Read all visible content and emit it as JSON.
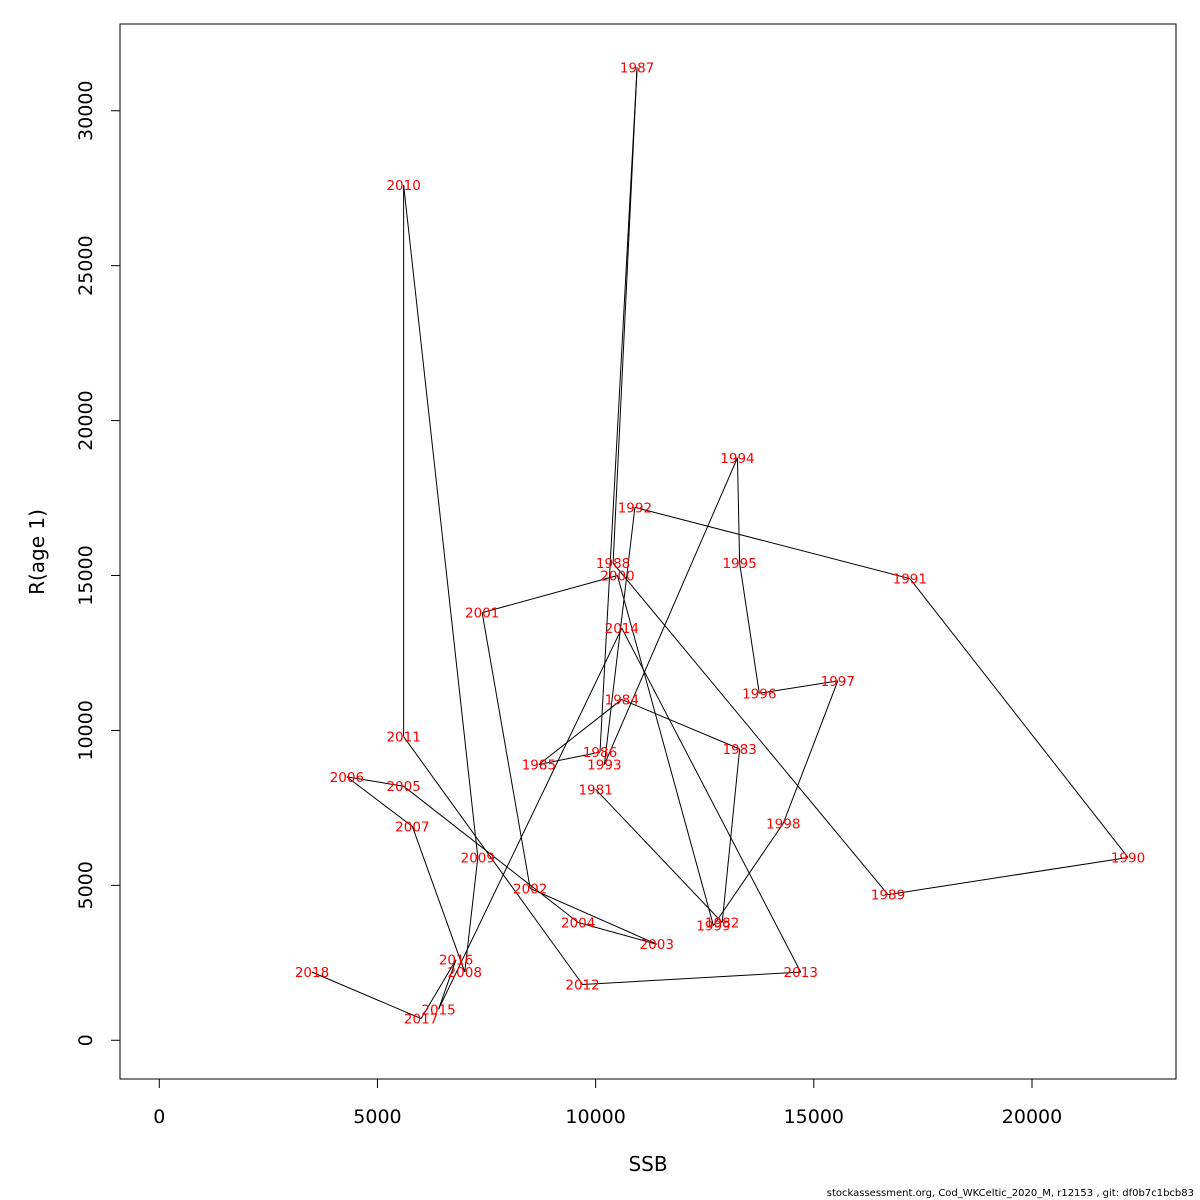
{
  "chart_data": {
    "type": "line",
    "xlabel": "SSB",
    "ylabel": "R(age 1)",
    "xlim": [
      -900,
      23300
    ],
    "ylim": [
      -1250,
      32800
    ],
    "x_ticks": [
      0,
      5000,
      10000,
      15000,
      20000
    ],
    "y_ticks": [
      0,
      5000,
      10000,
      15000,
      20000,
      25000,
      30000
    ],
    "grid": false,
    "point_color": "#ff0000",
    "line_color": "#000000",
    "points": [
      {
        "label": "1981",
        "x": 10000,
        "y": 8100
      },
      {
        "label": "1982",
        "x": 12900,
        "y": 3800
      },
      {
        "label": "1983",
        "x": 13300,
        "y": 9400
      },
      {
        "label": "1984",
        "x": 10600,
        "y": 11000
      },
      {
        "label": "1985",
        "x": 8700,
        "y": 8900
      },
      {
        "label": "1986",
        "x": 10100,
        "y": 9300
      },
      {
        "label": "1987",
        "x": 10950,
        "y": 31400
      },
      {
        "label": "1988",
        "x": 10400,
        "y": 15400
      },
      {
        "label": "1989",
        "x": 16700,
        "y": 4700
      },
      {
        "label": "1990",
        "x": 22200,
        "y": 5900
      },
      {
        "label": "1991",
        "x": 17200,
        "y": 14900
      },
      {
        "label": "1992",
        "x": 10900,
        "y": 17200
      },
      {
        "label": "1993",
        "x": 10200,
        "y": 8900
      },
      {
        "label": "1994",
        "x": 13250,
        "y": 18800
      },
      {
        "label": "1995",
        "x": 13300,
        "y": 15400
      },
      {
        "label": "1996",
        "x": 13750,
        "y": 11200
      },
      {
        "label": "1997",
        "x": 15550,
        "y": 11600
      },
      {
        "label": "1998",
        "x": 14300,
        "y": 7000
      },
      {
        "label": "1999",
        "x": 12700,
        "y": 3700
      },
      {
        "label": "2000",
        "x": 10500,
        "y": 15000
      },
      {
        "label": "2001",
        "x": 7400,
        "y": 13800
      },
      {
        "label": "2002",
        "x": 8500,
        "y": 4900
      },
      {
        "label": "2003",
        "x": 11400,
        "y": 3100
      },
      {
        "label": "2004",
        "x": 9600,
        "y": 3800
      },
      {
        "label": "2005",
        "x": 5600,
        "y": 8200
      },
      {
        "label": "2006",
        "x": 4300,
        "y": 8500
      },
      {
        "label": "2007",
        "x": 5800,
        "y": 6900
      },
      {
        "label": "2008",
        "x": 7000,
        "y": 2200
      },
      {
        "label": "2009",
        "x": 7300,
        "y": 5900
      },
      {
        "label": "2010",
        "x": 5600,
        "y": 27600
      },
      {
        "label": "2011",
        "x": 5600,
        "y": 9800
      },
      {
        "label": "2012",
        "x": 9700,
        "y": 1800
      },
      {
        "label": "2013",
        "x": 14700,
        "y": 2200
      },
      {
        "label": "2014",
        "x": 10600,
        "y": 13300
      },
      {
        "label": "2015",
        "x": 6400,
        "y": 1000
      },
      {
        "label": "2016",
        "x": 6800,
        "y": 2600
      },
      {
        "label": "2017",
        "x": 6000,
        "y": 700
      },
      {
        "label": "2018",
        "x": 3500,
        "y": 2200
      }
    ]
  },
  "footer": "stockassessment.org, Cod_WKCeltic_2020_M, r12153 , git: df0b7c1bcb83"
}
